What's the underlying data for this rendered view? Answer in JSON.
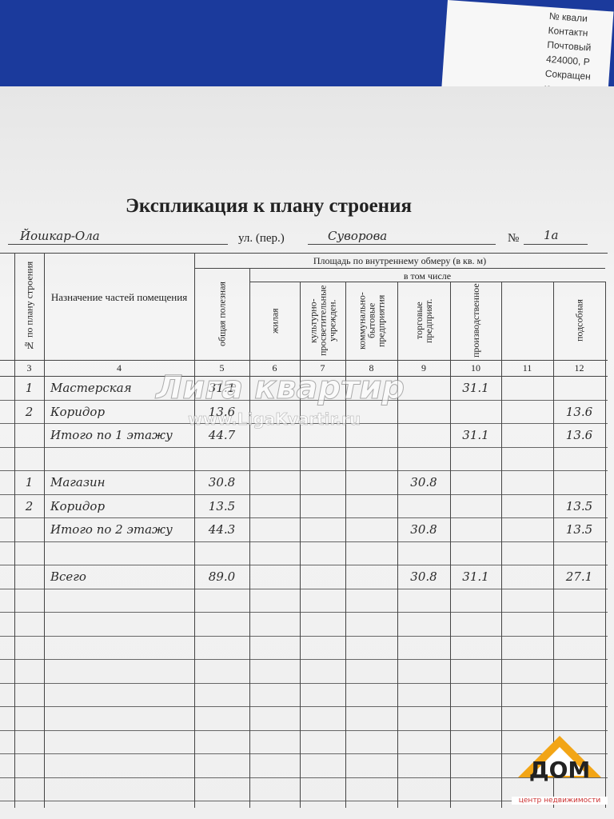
{
  "background_paper": {
    "lines": [
      "№ квали",
      "Контактн",
      "Почтовый",
      "424000, Р",
      "Сокращен",
      "юридичес"
    ]
  },
  "document": {
    "title": "Экспликация к плану строения",
    "city": "Йошкар-Ола",
    "street_label": "ул. (пер.)",
    "street": "Суворова",
    "number_label": "№",
    "number": "1а",
    "group_header": "Площадь по внутреннему обмеру (в кв. м)",
    "subgroup_header": "в том числе",
    "columns": [
      {
        "number": "3",
        "header": "№ по плану строения"
      },
      {
        "number": "4",
        "header": "Назначение частей помещения"
      },
      {
        "number": "5",
        "header": "общая полезная"
      },
      {
        "number": "6",
        "header": "жилая"
      },
      {
        "number": "7",
        "header": "культурно-просветительные учрежден."
      },
      {
        "number": "8",
        "header": "коммунально-бытовые предприятия"
      },
      {
        "number": "9",
        "header": "торговые предприят."
      },
      {
        "number": "10",
        "header": "производственное"
      },
      {
        "number": "11",
        "header": null
      },
      {
        "number": "12",
        "header": "подсобная"
      }
    ],
    "rows": [
      [
        "1",
        "Мастерская",
        "31.1",
        null,
        null,
        null,
        null,
        "31.1",
        null,
        null
      ],
      [
        "2",
        "Коридор",
        "13.6",
        null,
        null,
        null,
        null,
        null,
        null,
        "13.6"
      ],
      [
        null,
        "Итого по 1 этажу",
        "44.7",
        null,
        null,
        null,
        null,
        "31.1",
        null,
        "13.6"
      ],
      [
        null,
        null,
        null,
        null,
        null,
        null,
        null,
        null,
        null,
        null
      ],
      [
        "1",
        "Магазин",
        "30.8",
        null,
        null,
        null,
        "30.8",
        null,
        null,
        null
      ],
      [
        "2",
        "Коридор",
        "13.5",
        null,
        null,
        null,
        null,
        null,
        null,
        "13.5"
      ],
      [
        null,
        "Итого по 2 этажу",
        "44.3",
        null,
        null,
        null,
        "30.8",
        null,
        null,
        "13.5"
      ],
      [
        null,
        null,
        null,
        null,
        null,
        null,
        null,
        null,
        null,
        null
      ],
      [
        null,
        "Всего",
        "89.0",
        null,
        null,
        null,
        "30.8",
        "31.1",
        null,
        "27.1"
      ]
    ]
  },
  "watermark": {
    "title": "Лига квартир",
    "url": "www.LigaKvartir.ru"
  },
  "logo": {
    "title": "ДОМ",
    "subtitle": "центр недвижимости"
  }
}
